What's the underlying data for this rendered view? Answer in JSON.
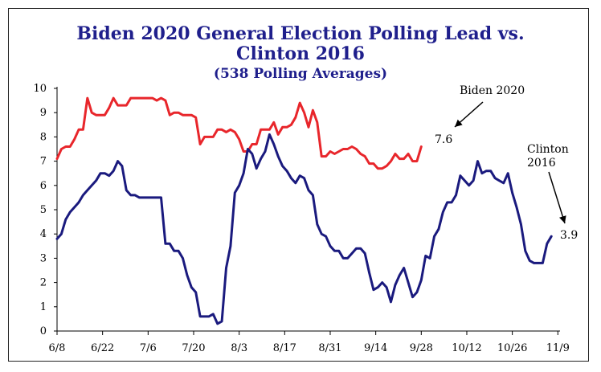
{
  "chart_data": {
    "type": "line",
    "title": "Biden 2020 General Election Polling Lead vs. Clinton 2016",
    "subtitle": "(538 Polling Averages)",
    "xlabel": "",
    "ylabel": "",
    "ylim": [
      0,
      10
    ],
    "yticks": [
      0,
      1,
      2,
      3,
      4,
      5,
      6,
      7,
      8,
      9,
      10
    ],
    "xticks": [
      "6/8",
      "6/22",
      "7/6",
      "7/20",
      "8/3",
      "8/17",
      "8/31",
      "9/14",
      "9/28",
      "10/12",
      "10/26",
      "11/9"
    ],
    "grid": false,
    "series": [
      {
        "name": "Biden 2020",
        "color": "#e8262b",
        "x": [
          0,
          1,
          2,
          3,
          4,
          5,
          6,
          7,
          8,
          9,
          10,
          11,
          12,
          13,
          14,
          15,
          16,
          17,
          18,
          19,
          20,
          21,
          22,
          23,
          24,
          25,
          26,
          27,
          28,
          29,
          30,
          31,
          32,
          33,
          34,
          35,
          36,
          37,
          38,
          39,
          40,
          41,
          42,
          43,
          44,
          45,
          46,
          47,
          48,
          49,
          50,
          51,
          52,
          53,
          54,
          55,
          56,
          57,
          58,
          59,
          60,
          61,
          62,
          63,
          64,
          65,
          66,
          67,
          68,
          69,
          70,
          71,
          72,
          73,
          74,
          75,
          76,
          77,
          78,
          79,
          80,
          81,
          82,
          83,
          84,
          85,
          86,
          87,
          88,
          89,
          90,
          91,
          92,
          93,
          94,
          95,
          96,
          97,
          98,
          99,
          100,
          101,
          102,
          103,
          104,
          105,
          106,
          107,
          108,
          109,
          110,
          111,
          112,
          113,
          114,
          115,
          116
        ],
        "values": [
          7.1,
          7.5,
          7.6,
          7.6,
          7.9,
          8.3,
          8.3,
          9.6,
          9.0,
          8.9,
          8.9,
          8.9,
          9.2,
          9.6,
          9.3,
          9.3,
          9.3,
          9.6,
          9.6,
          9.6,
          9.6,
          9.6,
          9.6,
          9.5,
          9.6,
          9.5,
          8.9,
          9.0,
          9.0,
          8.9,
          8.9,
          8.9,
          8.8,
          7.7,
          8.0,
          8.0,
          8.0,
          8.3,
          8.3,
          8.2,
          8.3,
          8.2,
          7.9,
          7.4,
          7.4,
          7.7,
          7.7,
          8.3,
          8.3,
          8.3,
          8.6,
          8.1,
          8.4,
          8.4,
          8.5,
          8.8,
          9.4,
          9.0,
          8.4,
          9.1,
          8.6,
          7.2,
          7.2,
          7.4,
          7.3,
          7.4,
          7.5,
          7.5,
          7.6,
          7.5,
          7.3,
          7.2,
          6.9,
          6.9,
          6.7,
          6.7,
          6.8,
          7.0,
          7.3,
          7.1,
          7.1,
          7.3,
          7.0,
          7.0,
          7.6,
          null,
          null,
          null,
          null,
          null,
          null,
          null,
          null,
          null,
          null,
          null,
          null,
          null,
          null,
          null,
          null,
          null,
          null,
          null,
          null,
          null,
          null,
          null,
          null,
          null,
          null,
          null,
          null,
          null,
          null,
          null,
          null
        ]
      },
      {
        "name": "Clinton 2016",
        "color": "#1a1a7e",
        "x": [
          0,
          1,
          2,
          3,
          4,
          5,
          6,
          7,
          8,
          9,
          10,
          11,
          12,
          13,
          14,
          15,
          16,
          17,
          18,
          19,
          20,
          21,
          22,
          23,
          24,
          25,
          26,
          27,
          28,
          29,
          30,
          31,
          32,
          33,
          34,
          35,
          36,
          37,
          38,
          39,
          40,
          41,
          42,
          43,
          44,
          45,
          46,
          47,
          48,
          49,
          50,
          51,
          52,
          53,
          54,
          55,
          56,
          57,
          58,
          59,
          60,
          61,
          62,
          63,
          64,
          65,
          66,
          67,
          68,
          69,
          70,
          71,
          72,
          73,
          74,
          75,
          76,
          77,
          78,
          79,
          80,
          81,
          82,
          83,
          84,
          85,
          86,
          87,
          88,
          89,
          90,
          91,
          92,
          93,
          94,
          95,
          96,
          97,
          98,
          99,
          100,
          101,
          102,
          103,
          104,
          105,
          106,
          107,
          108,
          109,
          110,
          111,
          112,
          113,
          114,
          115,
          116
        ],
        "values": [
          3.8,
          4.0,
          4.6,
          4.9,
          5.1,
          5.3,
          5.6,
          5.8,
          6.0,
          6.2,
          6.5,
          6.5,
          6.4,
          6.6,
          7.0,
          6.8,
          5.8,
          5.6,
          5.6,
          5.5,
          5.5,
          5.5,
          5.5,
          5.5,
          5.5,
          3.6,
          3.6,
          3.3,
          3.3,
          3.0,
          2.3,
          1.8,
          1.6,
          0.6,
          0.6,
          0.6,
          0.7,
          0.3,
          0.4,
          2.6,
          3.5,
          5.7,
          6.0,
          6.5,
          7.5,
          7.3,
          6.7,
          7.1,
          7.4,
          8.1,
          7.7,
          7.2,
          6.8,
          6.6,
          6.3,
          6.1,
          6.4,
          6.3,
          5.8,
          5.6,
          4.4,
          4.0,
          3.9,
          3.5,
          3.3,
          3.3,
          3.0,
          3.0,
          3.2,
          3.4,
          3.4,
          3.2,
          2.4,
          1.7,
          1.8,
          2.0,
          1.8,
          1.2,
          1.9,
          2.3,
          2.6,
          2.0,
          1.4,
          1.6,
          2.1,
          3.1,
          3.0,
          3.9,
          4.2,
          4.9,
          5.3,
          5.3,
          5.6,
          6.4,
          6.2,
          6.0,
          6.2,
          7.0,
          6.5,
          6.6,
          6.6,
          6.3,
          6.2,
          6.1,
          6.5,
          5.7,
          5.1,
          4.4,
          3.3,
          2.9,
          2.8,
          2.8,
          2.8,
          3.6,
          3.9,
          null,
          null
        ]
      }
    ],
    "annotations": [
      {
        "text": "Biden 2020",
        "points_to_series": "Biden 2020"
      },
      {
        "text": "7.6",
        "series": "Biden 2020"
      },
      {
        "text_lines": [
          "Clinton",
          "2016"
        ],
        "points_to_series": "Clinton 2016"
      },
      {
        "text": "3.9",
        "series": "Clinton 2016"
      }
    ],
    "legend": "none"
  }
}
